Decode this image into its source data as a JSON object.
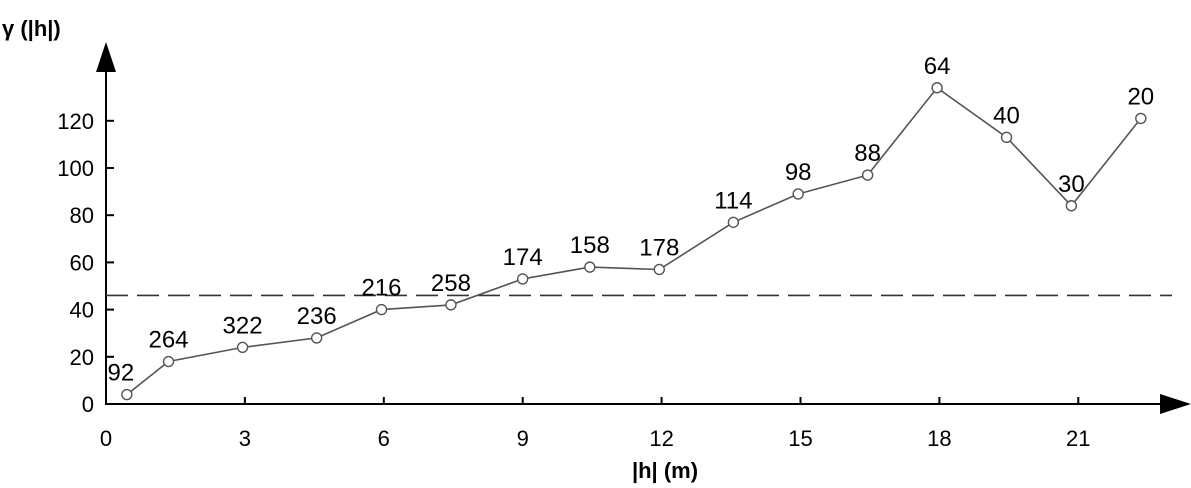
{
  "chart_data": {
    "type": "line",
    "title": "",
    "xlabel": "|h| (m)",
    "ylabel": "γ (|h|)",
    "xlim": [
      0,
      23
    ],
    "ylim": [
      0,
      130
    ],
    "xticks": [
      0,
      3,
      6,
      9,
      12,
      15,
      18,
      21
    ],
    "yticks": [
      0,
      20,
      40,
      60,
      80,
      100,
      120
    ],
    "grid": false,
    "legend": "none",
    "reference_line": {
      "style": "dashed",
      "y": 46
    },
    "series": [
      {
        "marker": "open-circle",
        "color": "#555555",
        "points": [
          {
            "x": 0.45,
            "y": 4,
            "label": "92"
          },
          {
            "x": 1.35,
            "y": 18,
            "label": "264"
          },
          {
            "x": 2.95,
            "y": 24,
            "label": "322"
          },
          {
            "x": 4.55,
            "y": 28,
            "label": "236"
          },
          {
            "x": 5.95,
            "y": 40,
            "label": "216"
          },
          {
            "x": 7.45,
            "y": 42,
            "label": "258"
          },
          {
            "x": 9.0,
            "y": 53,
            "label": "174"
          },
          {
            "x": 10.45,
            "y": 58,
            "label": "158"
          },
          {
            "x": 11.95,
            "y": 57,
            "label": "178"
          },
          {
            "x": 13.55,
            "y": 77,
            "label": "114"
          },
          {
            "x": 14.95,
            "y": 89,
            "label": "98"
          },
          {
            "x": 16.45,
            "y": 97,
            "label": "88"
          },
          {
            "x": 17.95,
            "y": 134,
            "label": "64"
          },
          {
            "x": 19.45,
            "y": 113,
            "label": "40"
          },
          {
            "x": 20.85,
            "y": 84,
            "label": "30"
          },
          {
            "x": 22.35,
            "y": 121,
            "label": "20"
          }
        ]
      }
    ]
  }
}
